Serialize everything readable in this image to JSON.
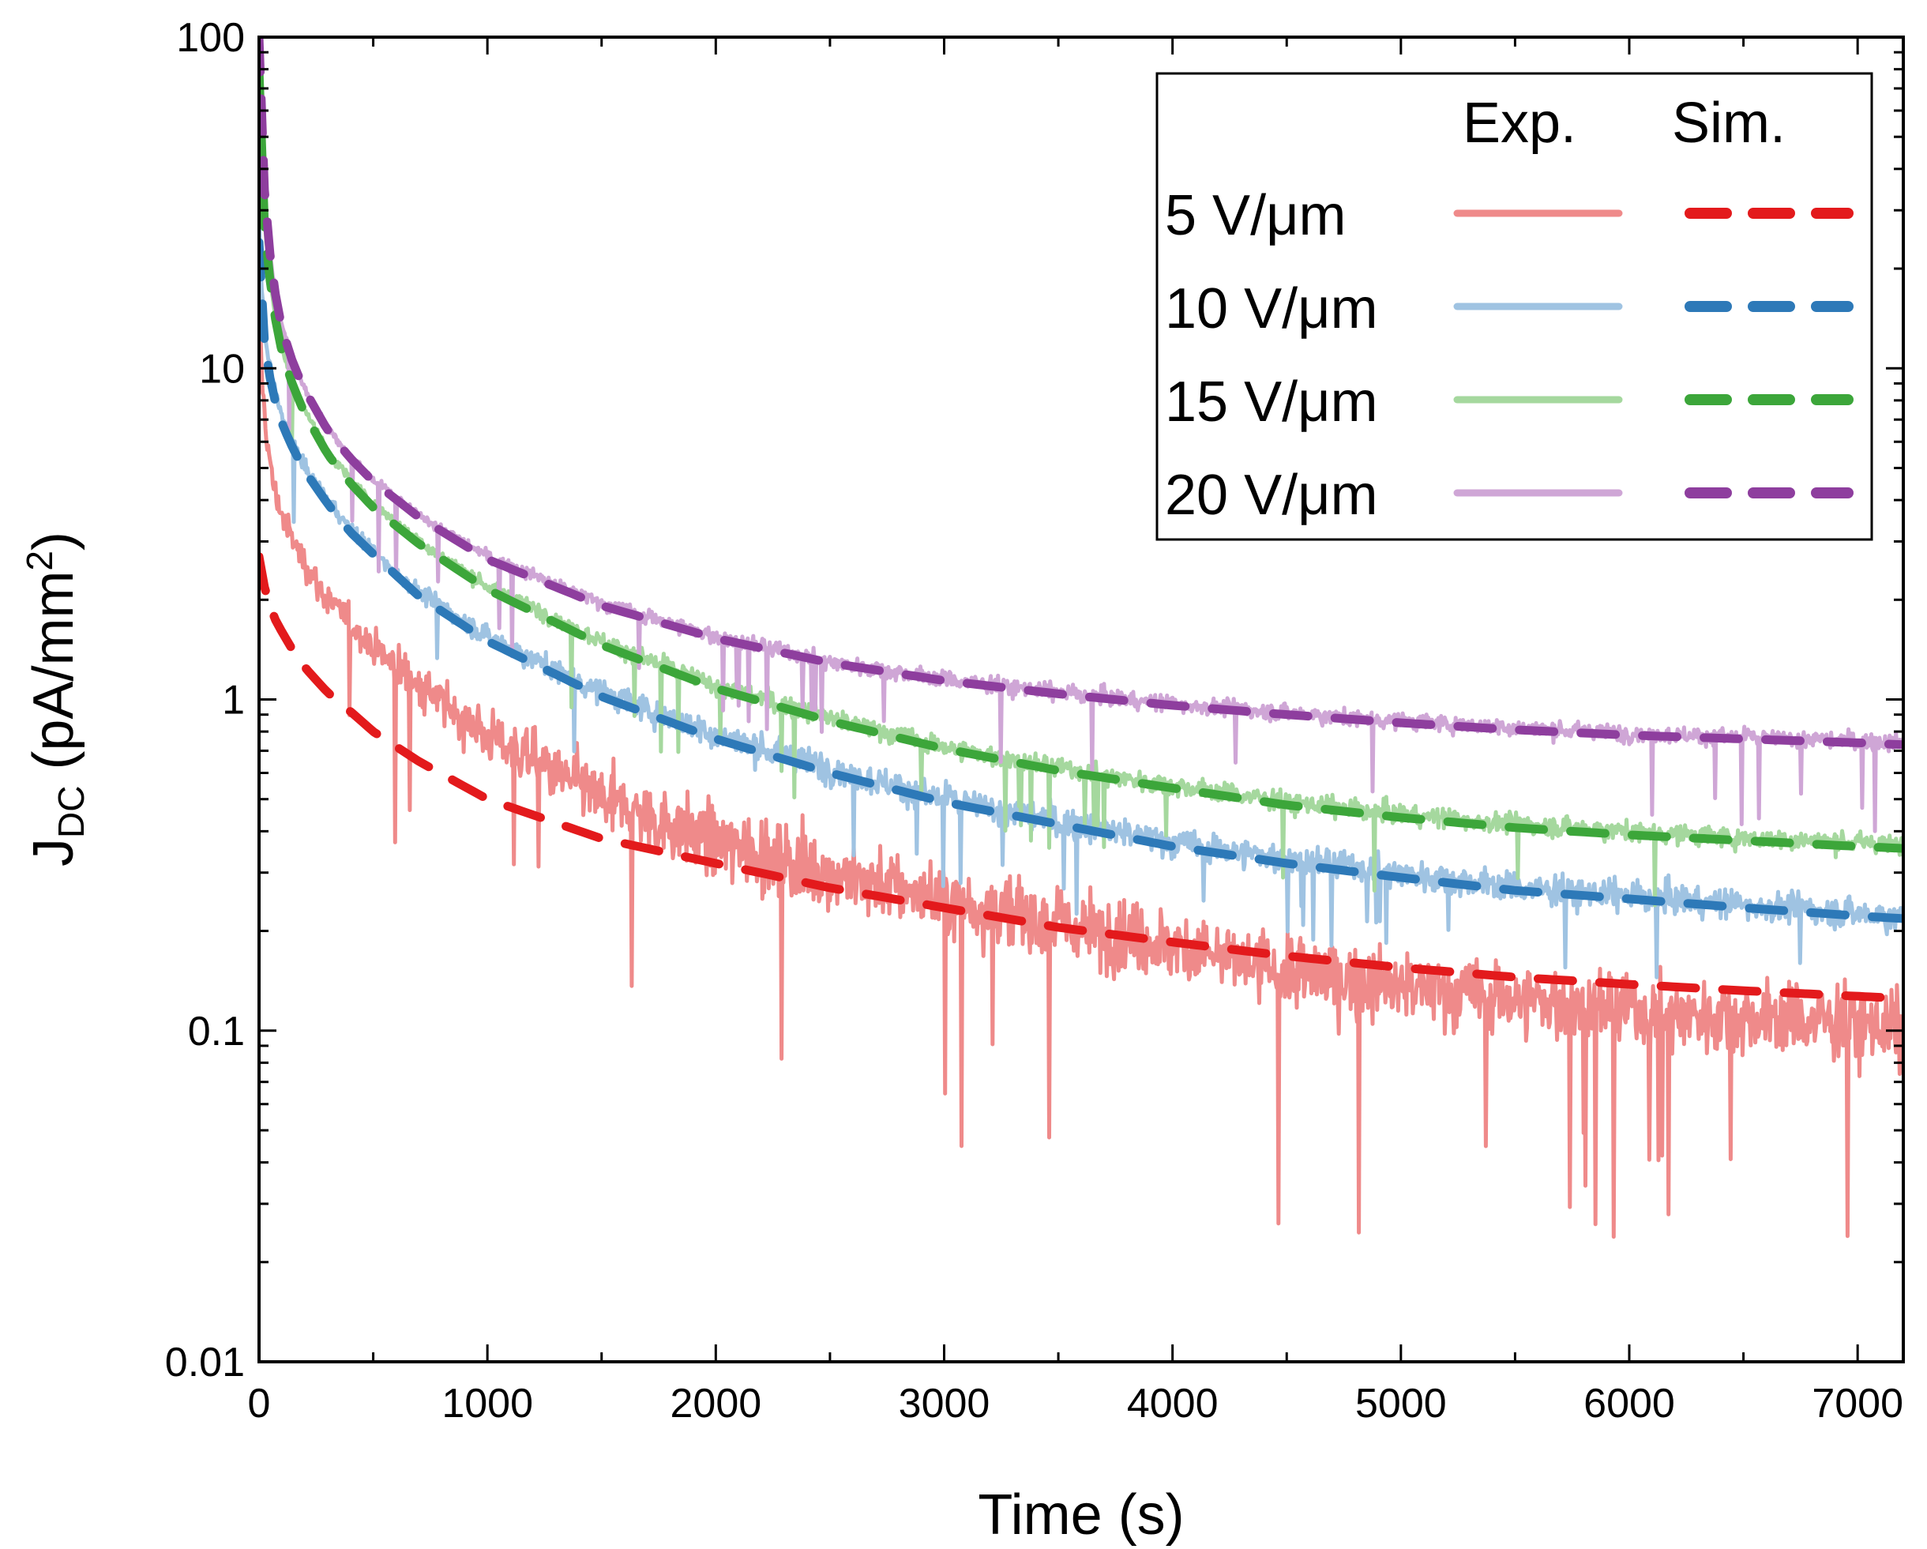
{
  "chart_data": {
    "type": "line",
    "title": "",
    "xlabel": "Time (s)",
    "ylabel_main": "J",
    "ylabel_sub": "DC",
    "ylabel_unit_pre": " (pA/mm",
    "ylabel_unit_sup": "2",
    "ylabel_unit_post": ")",
    "xlim": [
      0,
      7200
    ],
    "ylim": [
      0.01,
      100
    ],
    "yscale": "log",
    "x_ticks": [
      0,
      1000,
      2000,
      3000,
      4000,
      5000,
      6000,
      7000
    ],
    "x_tick_labels": [
      "0",
      "1000",
      "2000",
      "3000",
      "4000",
      "5000",
      "6000",
      "7000"
    ],
    "x_minor_step": 500,
    "y_ticks": [
      0.01,
      0.1,
      1,
      10,
      100
    ],
    "y_tick_labels": [
      "0.01",
      "0.1",
      "1",
      "10",
      "100"
    ],
    "legend": {
      "position": "top-right",
      "header_exp": "Exp.",
      "header_sim": "Sim.",
      "entries": [
        {
          "label": "5 V/μm",
          "exp_color": "#ef8a8a",
          "sim_color": "#e31a1c"
        },
        {
          "label": "10 V/μm",
          "exp_color": "#9fc3e2",
          "sim_color": "#2d79b8"
        },
        {
          "label": "15 V/μm",
          "exp_color": "#a5d89e",
          "sim_color": "#3ca63a"
        },
        {
          "label": "20 V/μm",
          "exp_color": "#cfa6d6",
          "sim_color": "#8e3e9e"
        }
      ]
    },
    "series": [
      {
        "name": "5 V/μm Exp.",
        "style": "solid",
        "color": "#ef8a8a",
        "noise": 0.22,
        "x": [
          0,
          10,
          30,
          60,
          100,
          150,
          200,
          300,
          400,
          500,
          700,
          1000,
          1500,
          2000,
          2500,
          3000,
          3500,
          4000,
          4500,
          5000,
          5500,
          6000,
          6500,
          7000,
          7200
        ],
        "y": [
          20,
          10,
          6.5,
          4.5,
          3.6,
          3.0,
          2.6,
          2.0,
          1.7,
          1.45,
          1.1,
          0.78,
          0.5,
          0.37,
          0.3,
          0.25,
          0.21,
          0.18,
          0.15,
          0.135,
          0.125,
          0.115,
          0.11,
          0.105,
          0.1
        ]
      },
      {
        "name": "5 V/μm Sim.",
        "style": "dashed",
        "color": "#e31a1c",
        "x": [
          0,
          10,
          30,
          60,
          100,
          150,
          200,
          300,
          400,
          500,
          700,
          1000,
          1500,
          2000,
          2500,
          3000,
          3500,
          4000,
          4500,
          5000,
          5500,
          6000,
          6500,
          7000,
          7200
        ],
        "y": [
          2.7,
          2.4,
          2.1,
          1.8,
          1.6,
          1.4,
          1.25,
          1.05,
          0.92,
          0.8,
          0.65,
          0.5,
          0.38,
          0.32,
          0.27,
          0.235,
          0.205,
          0.185,
          0.168,
          0.155,
          0.145,
          0.138,
          0.132,
          0.127,
          0.125
        ]
      },
      {
        "name": "10 V/μm Exp.",
        "style": "solid",
        "color": "#9fc3e2",
        "noise": 0.09,
        "x": [
          0,
          10,
          30,
          60,
          100,
          150,
          200,
          300,
          400,
          500,
          700,
          1000,
          1500,
          2000,
          2500,
          3000,
          3500,
          4000,
          4500,
          5000,
          5500,
          6000,
          6500,
          7000,
          7200
        ],
        "y": [
          30,
          18,
          12,
          9,
          7.2,
          6.0,
          5.0,
          4.0,
          3.3,
          2.8,
          2.1,
          1.55,
          1.05,
          0.78,
          0.62,
          0.5,
          0.43,
          0.37,
          0.33,
          0.3,
          0.27,
          0.255,
          0.24,
          0.225,
          0.22
        ]
      },
      {
        "name": "10 V/μm Sim.",
        "style": "dashed",
        "color": "#2d79b8",
        "x": [
          0,
          10,
          30,
          60,
          100,
          150,
          200,
          300,
          400,
          500,
          700,
          1000,
          1500,
          2000,
          2500,
          3000,
          3500,
          4000,
          4500,
          5000,
          5500,
          6000,
          6500,
          7000,
          7200
        ],
        "y": [
          24,
          15,
          11,
          8.4,
          6.8,
          5.7,
          4.9,
          3.9,
          3.2,
          2.75,
          2.05,
          1.5,
          1.02,
          0.76,
          0.6,
          0.49,
          0.42,
          0.36,
          0.32,
          0.29,
          0.265,
          0.25,
          0.235,
          0.222,
          0.218
        ]
      },
      {
        "name": "15 V/μm Exp.",
        "style": "solid",
        "color": "#a5d89e",
        "noise": 0.06,
        "x": [
          0,
          10,
          30,
          60,
          100,
          150,
          200,
          300,
          400,
          500,
          700,
          1000,
          1500,
          2000,
          2500,
          3000,
          3500,
          4000,
          4500,
          5000,
          5500,
          6000,
          6500,
          7000,
          7200
        ],
        "y": [
          90,
          40,
          25,
          16,
          11.5,
          9.0,
          7.5,
          5.6,
          4.6,
          3.9,
          3.0,
          2.2,
          1.5,
          1.1,
          0.88,
          0.72,
          0.62,
          0.55,
          0.49,
          0.45,
          0.42,
          0.4,
          0.38,
          0.37,
          0.36
        ]
      },
      {
        "name": "15 V/μm Sim.",
        "style": "dashed",
        "color": "#3ca63a",
        "x": [
          0,
          10,
          30,
          60,
          100,
          150,
          200,
          300,
          400,
          500,
          700,
          1000,
          1500,
          2000,
          2500,
          3000,
          3500,
          4000,
          4500,
          5000,
          5500,
          6000,
          6500,
          7000,
          7200
        ],
        "y": [
          80,
          36,
          24,
          15.5,
          11.2,
          8.8,
          7.3,
          5.5,
          4.5,
          3.8,
          2.95,
          2.15,
          1.46,
          1.08,
          0.86,
          0.71,
          0.61,
          0.54,
          0.48,
          0.44,
          0.41,
          0.39,
          0.375,
          0.36,
          0.355
        ]
      },
      {
        "name": "20 V/μm Exp.",
        "style": "solid",
        "color": "#cfa6d6",
        "noise": 0.05,
        "x": [
          0,
          10,
          30,
          60,
          100,
          150,
          200,
          300,
          400,
          500,
          700,
          1000,
          1500,
          2000,
          2500,
          3000,
          3500,
          4000,
          4500,
          5000,
          5500,
          6000,
          6500,
          7000,
          7200
        ],
        "y": [
          100,
          55,
          30,
          19,
          13.5,
          10.5,
          8.7,
          6.6,
          5.4,
          4.6,
          3.6,
          2.7,
          1.95,
          1.55,
          1.3,
          1.15,
          1.05,
          0.97,
          0.91,
          0.86,
          0.82,
          0.79,
          0.77,
          0.75,
          0.74
        ]
      },
      {
        "name": "20 V/μm Sim.",
        "style": "dashed",
        "color": "#8e3e9e",
        "x": [
          0,
          10,
          30,
          60,
          100,
          150,
          200,
          300,
          400,
          500,
          700,
          1000,
          1500,
          2000,
          2500,
          3000,
          3500,
          4000,
          4500,
          5000,
          5500,
          6000,
          6500,
          7000,
          7200
        ],
        "y": [
          100,
          52,
          29,
          18.5,
          13.2,
          10.3,
          8.6,
          6.5,
          5.35,
          4.55,
          3.55,
          2.65,
          1.92,
          1.53,
          1.29,
          1.14,
          1.04,
          0.96,
          0.9,
          0.85,
          0.81,
          0.78,
          0.76,
          0.74,
          0.73
        ]
      }
    ]
  }
}
